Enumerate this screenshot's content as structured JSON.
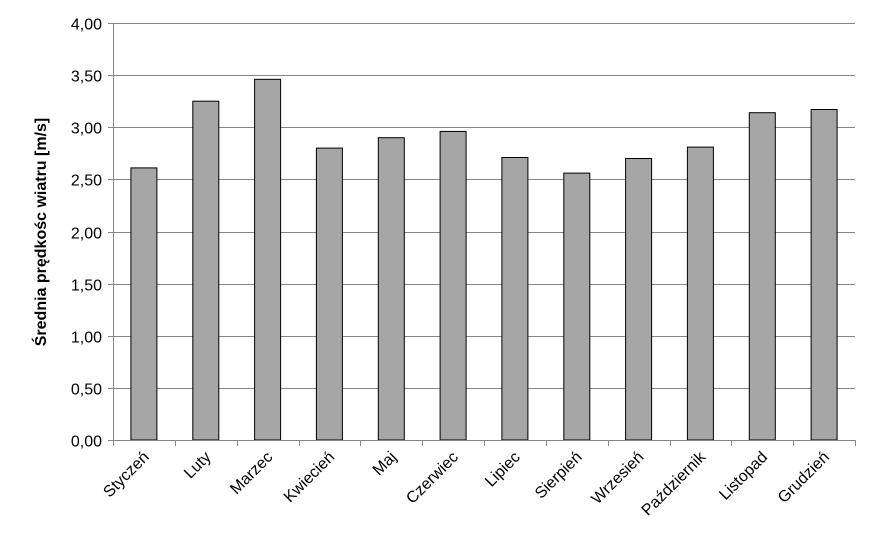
{
  "chart_data": {
    "type": "bar",
    "categories": [
      "Styczeń",
      "Luty",
      "Marzec",
      "Kwiecień",
      "Maj",
      "Czerwiec",
      "Lipiec",
      "Sierpień",
      "Wrzesień",
      "Październik",
      "Listopad",
      "Grudzień"
    ],
    "values": [
      2.61,
      3.25,
      3.46,
      2.8,
      2.9,
      2.96,
      2.71,
      2.56,
      2.7,
      2.81,
      3.14,
      3.17
    ],
    "ylabel": "Średnia prędkośc wiatru [m/s]",
    "ylim": [
      0,
      4
    ],
    "yticks": [
      "0,00",
      "0,50",
      "1,00",
      "1,50",
      "2,00",
      "2,50",
      "3,00",
      "3,50",
      "4,00"
    ],
    "grid": true,
    "legend": "none",
    "bar_color": "#a6a6a6"
  }
}
